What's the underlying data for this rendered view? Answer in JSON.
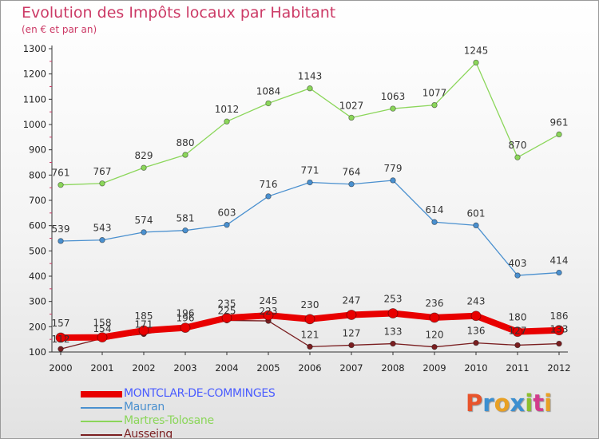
{
  "title": "Evolution des Impôts locaux par Habitant",
  "subtitle": "(en € et par an)",
  "logo": {
    "text": "Proxiti",
    "letters": [
      "P",
      "r",
      "o",
      "x",
      "i",
      "t",
      "i"
    ],
    "colors": [
      "#e8542c",
      "#3c8fd0",
      "#e8a024",
      "#3c8fd0",
      "#8cbf2c",
      "#d23c8c",
      "#e8a024"
    ]
  },
  "chart_data": {
    "type": "line",
    "title": "Evolution des Impôts locaux par Habitant",
    "subtitle": "(en € et par an)",
    "x": [
      2000,
      2001,
      2002,
      2003,
      2004,
      2005,
      2006,
      2007,
      2008,
      2009,
      2010,
      2011,
      2012
    ],
    "ylim": [
      100,
      1300
    ],
    "yticks": [
      100,
      200,
      300,
      400,
      500,
      600,
      700,
      800,
      900,
      1000,
      1100,
      1200,
      1300
    ],
    "grid": false,
    "legend_position": "bottom-left",
    "series": [
      {
        "name": "Martres-Tolosane",
        "color": "#8bd65a",
        "values": [
          761,
          767,
          829,
          880,
          1012,
          1084,
          1143,
          1027,
          1063,
          1077,
          1245,
          870,
          961
        ]
      },
      {
        "name": "Mauran",
        "color": "#4a90cf",
        "values": [
          539,
          543,
          574,
          581,
          603,
          716,
          771,
          764,
          779,
          614,
          601,
          403,
          414
        ]
      },
      {
        "name": "Ausseing",
        "color": "#7a1e20",
        "values": [
          112,
          154,
          171,
          196,
          225,
          223,
          121,
          127,
          133,
          120,
          136,
          127,
          133
        ]
      },
      {
        "name": "MONTCLAR-DE-COMMINGES",
        "color": "#e80000",
        "values": [
          157,
          158,
          185,
          196,
          235,
          245,
          230,
          247,
          253,
          236,
          243,
          180,
          186
        ]
      }
    ],
    "legend_order": [
      "MONTCLAR-DE-COMMINGES",
      "Mauran",
      "Martres-Tolosane",
      "Ausseing"
    ]
  }
}
